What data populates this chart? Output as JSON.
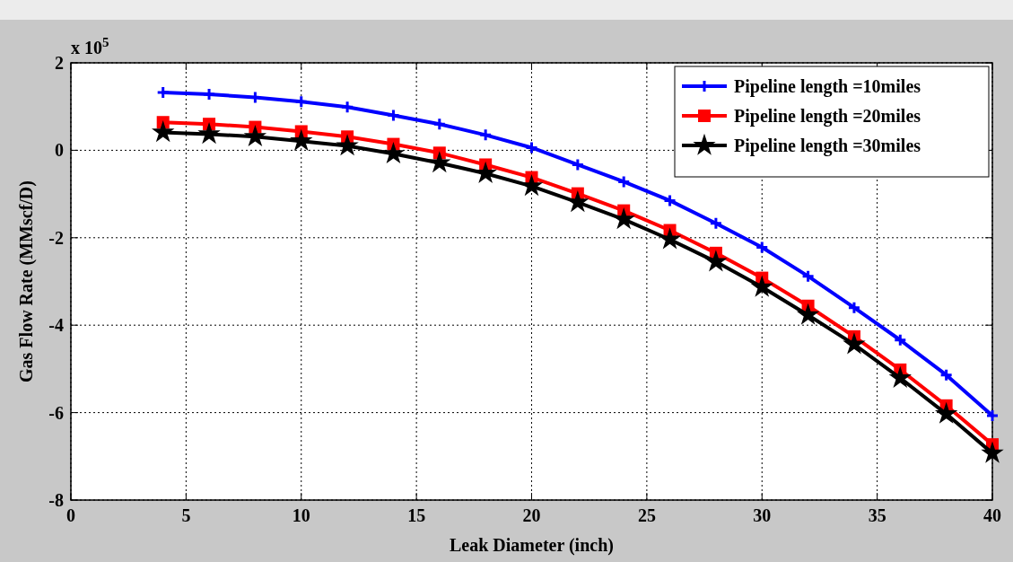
{
  "chart_data": {
    "type": "line",
    "xlabel": "Leak Diameter (inch)",
    "ylabel": "Gas Flow Rate (MMscf/D)",
    "annotations": [
      "x 10$^{5}$"
    ],
    "x": [
      4,
      6,
      8,
      10,
      12,
      14,
      16,
      18,
      20,
      22,
      24,
      26,
      28,
      30,
      32,
      34,
      36,
      38,
      40
    ],
    "series": [
      {
        "name": "Pipeline length =10miles",
        "color": "#0000ff",
        "marker": "cross",
        "values": [
          1.32,
          1.28,
          1.21,
          1.11,
          0.99,
          0.8,
          0.6,
          0.35,
          0.06,
          -0.33,
          -0.72,
          -1.15,
          -1.67,
          -2.22,
          -2.88,
          -3.6,
          -4.34,
          -5.14,
          -6.07
        ]
      },
      {
        "name": "Pipeline length =20miles",
        "color": "#ff0000",
        "marker": "square",
        "values": [
          0.64,
          0.6,
          0.53,
          0.43,
          0.31,
          0.14,
          -0.06,
          -0.33,
          -0.62,
          -0.99,
          -1.38,
          -1.83,
          -2.35,
          -2.92,
          -3.56,
          -4.26,
          -5.02,
          -5.84,
          -6.73
        ]
      },
      {
        "name": "Pipeline length =30miles",
        "color": "#000000",
        "marker": "star",
        "values": [
          0.41,
          0.37,
          0.31,
          0.21,
          0.1,
          -0.08,
          -0.29,
          -0.53,
          -0.82,
          -1.19,
          -1.58,
          -2.04,
          -2.55,
          -3.13,
          -3.77,
          -4.44,
          -5.21,
          -6.03,
          -6.93
        ]
      }
    ],
    "xlim": [
      0,
      40
    ],
    "xticks": [
      0,
      5,
      10,
      15,
      20,
      25,
      30,
      35,
      40
    ],
    "ylim": [
      -8,
      2
    ],
    "yticks": [
      -8,
      -6,
      -4,
      -2,
      0,
      2
    ],
    "grid": true,
    "legend": "top right",
    "line_style": "solid"
  }
}
